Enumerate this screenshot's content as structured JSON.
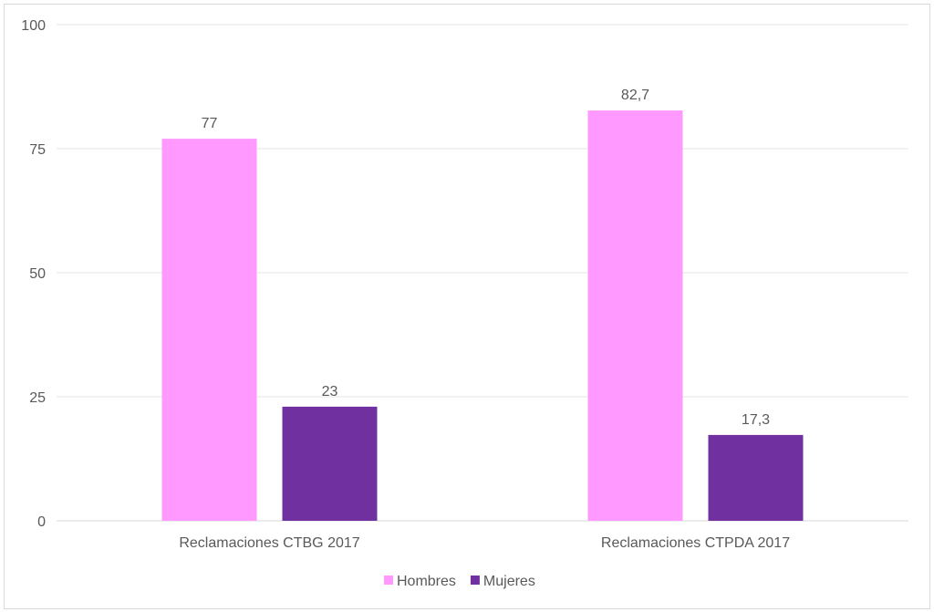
{
  "chart_data": {
    "type": "bar",
    "title": "",
    "categories": [
      "Reclamaciones CTBG 2017",
      "Reclamaciones CTPDA 2017"
    ],
    "series": [
      {
        "name": "Hombres",
        "values": [
          77,
          82.7
        ],
        "labels": [
          "77",
          "82,7"
        ],
        "color": "#FF99FF"
      },
      {
        "name": "Mujeres",
        "values": [
          23,
          17.3
        ],
        "labels": [
          "23",
          "17,3"
        ],
        "color": "#7030A0"
      }
    ],
    "ylim": [
      0,
      100
    ],
    "yticks": [
      0,
      25,
      50,
      75,
      100
    ],
    "ytick_labels": [
      "0",
      "25",
      "50",
      "75",
      "100"
    ],
    "grid": true,
    "legend": "bottom"
  }
}
